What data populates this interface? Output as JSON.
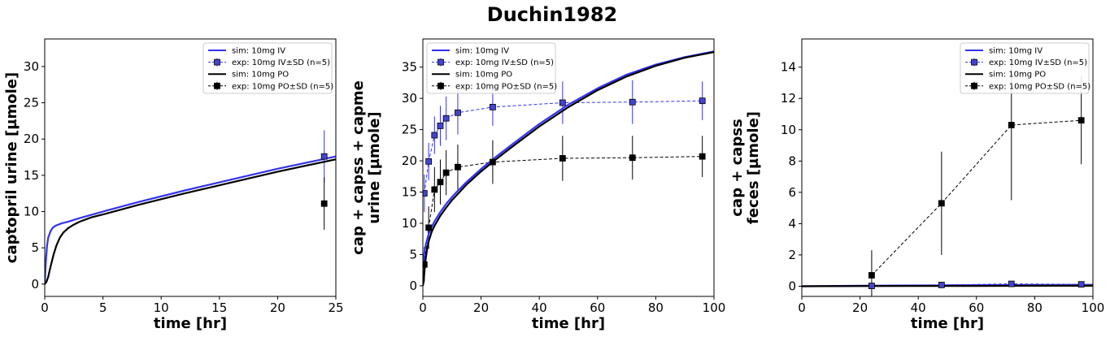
{
  "figure": {
    "title": "Duchin1982"
  },
  "styles": {
    "iv_color": "#3333ee",
    "iv_marker_fill": "#4444cc",
    "po_color": "#000000"
  },
  "chart_data": [
    {
      "type": "line",
      "xlabel": "time [hr]",
      "ylabel": [
        "captopril urine [µmole]"
      ],
      "xlim": [
        0,
        25
      ],
      "ylim": [
        -1.7,
        33.8
      ],
      "xticks": [
        0,
        5,
        10,
        15,
        20,
        25
      ],
      "yticks": [
        0,
        5,
        10,
        15,
        20,
        25,
        30
      ],
      "legend": {
        "position": "top-right",
        "entries": [
          "sim: 10mg IV",
          "exp: 10mg IV±SD (n=5)",
          "sim: 10mg PO",
          "exp: 10mg PO±SD (n=5)"
        ]
      },
      "series": [
        {
          "name": "sim: 10mg IV",
          "kind": "sim",
          "color_key": "iv",
          "x": [
            0,
            0.1,
            0.2,
            0.3,
            0.5,
            0.7,
            1,
            1.5,
            2,
            3,
            5,
            8,
            12,
            16,
            20,
            25
          ],
          "y": [
            0,
            3.2,
            5.3,
            6.4,
            7.3,
            7.8,
            8.1,
            8.4,
            8.6,
            9.1,
            10.0,
            11.3,
            12.9,
            14.4,
            15.9,
            17.6
          ]
        },
        {
          "name": "sim: 10mg PO",
          "kind": "sim",
          "color_key": "po",
          "x": [
            0,
            0.15,
            0.3,
            0.5,
            0.75,
            1,
            1.3,
            1.6,
            2,
            2.5,
            3,
            4,
            5,
            8,
            12,
            16,
            20,
            25
          ],
          "y": [
            0,
            0.3,
            1.0,
            2.4,
            4.0,
            5.3,
            6.4,
            7.1,
            7.7,
            8.2,
            8.6,
            9.2,
            9.6,
            10.9,
            12.5,
            14.0,
            15.5,
            17.2
          ]
        },
        {
          "name": "exp: 10mg IV±SD (n=5)",
          "kind": "exp",
          "color_key": "iv",
          "x": [
            24
          ],
          "y": [
            17.6
          ],
          "sd": [
            3.6
          ]
        },
        {
          "name": "exp: 10mg PO±SD (n=5)",
          "kind": "exp",
          "color_key": "po",
          "x": [
            24
          ],
          "y": [
            11.1
          ],
          "sd": [
            3.6
          ]
        }
      ]
    },
    {
      "type": "line",
      "xlabel": "time [hr]",
      "ylabel": [
        "cap + capss + capme",
        "urine [µmole]"
      ],
      "xlim": [
        0,
        100
      ],
      "ylim": [
        -1.7,
        39.5
      ],
      "xticks": [
        0,
        20,
        40,
        60,
        80,
        100
      ],
      "yticks": [
        0,
        5,
        10,
        15,
        20,
        25,
        30,
        35
      ],
      "legend": {
        "position": "top-left",
        "entries": [
          "sim: 10mg IV",
          "exp: 10mg IV±SD (n=5)",
          "sim: 10mg PO",
          "exp: 10mg PO±SD (n=5)"
        ]
      },
      "series": [
        {
          "name": "sim: 10mg IV",
          "kind": "sim",
          "color_key": "iv",
          "x": [
            0,
            0.2,
            0.5,
            1,
            2,
            3,
            4,
            6,
            8,
            10,
            12,
            15,
            20,
            25,
            30,
            40,
            50,
            60,
            70,
            80,
            90,
            100
          ],
          "y": [
            0,
            3.0,
            5.2,
            6.6,
            8.3,
            9.4,
            10.3,
            11.8,
            13.1,
            14.2,
            15.2,
            16.6,
            18.7,
            20.6,
            22.4,
            25.9,
            29.0,
            31.6,
            33.8,
            35.4,
            36.6,
            37.5
          ]
        },
        {
          "name": "sim: 10mg PO",
          "kind": "sim",
          "color_key": "po",
          "x": [
            0,
            0.3,
            0.6,
            1,
            1.5,
            2,
            3,
            4,
            6,
            8,
            10,
            12,
            15,
            20,
            25,
            30,
            40,
            50,
            60,
            70,
            80,
            90,
            100
          ],
          "y": [
            0,
            0.8,
            2.6,
            4.4,
            6.0,
            7.1,
            8.6,
            9.6,
            11.2,
            12.5,
            13.7,
            14.7,
            16.2,
            18.3,
            20.2,
            22.0,
            25.5,
            28.6,
            31.3,
            33.5,
            35.2,
            36.5,
            37.4
          ]
        },
        {
          "name": "exp: 10mg IV±SD (n=5)",
          "kind": "exp",
          "color_key": "iv",
          "x": [
            0.5,
            2,
            4,
            6,
            8,
            12,
            24,
            48,
            72,
            96
          ],
          "y": [
            14.8,
            19.9,
            24.1,
            25.6,
            26.8,
            27.7,
            28.6,
            29.3,
            29.4,
            29.6
          ],
          "sd": [
            3.0,
            3.0,
            3.0,
            3.2,
            3.5,
            3.5,
            3.0,
            3.4,
            3.5,
            3.1
          ]
        },
        {
          "name": "exp: 10mg PO±SD (n=5)",
          "kind": "exp",
          "color_key": "po",
          "x": [
            0.5,
            2,
            4,
            6,
            8,
            12,
            24,
            48,
            72,
            96
          ],
          "y": [
            3.4,
            9.3,
            15.4,
            16.6,
            18.1,
            19.0,
            19.8,
            20.4,
            20.5,
            20.7
          ],
          "sd": [
            2.8,
            3.4,
            3.6,
            3.6,
            3.6,
            3.6,
            3.5,
            3.6,
            3.5,
            3.3
          ]
        }
      ]
    },
    {
      "type": "line",
      "xlabel": "time [hr]",
      "ylabel": [
        "cap + capss",
        "feces [µmole]"
      ],
      "xlim": [
        0,
        100
      ],
      "ylim": [
        -0.65,
        15.8
      ],
      "xticks": [
        0,
        20,
        40,
        60,
        80,
        100
      ],
      "yticks": [
        0,
        2,
        4,
        6,
        8,
        10,
        12,
        14
      ],
      "legend": {
        "position": "top-right",
        "entries": [
          "sim: 10mg IV",
          "exp: 10mg IV±SD (n=5)",
          "sim: 10mg PO",
          "exp: 10mg PO±SD (n=5)"
        ]
      },
      "series": [
        {
          "name": "sim: 10mg IV",
          "kind": "sim",
          "color_key": "iv",
          "x": [
            0,
            20,
            40,
            60,
            80,
            100
          ],
          "y": [
            0,
            0.03,
            0.05,
            0.07,
            0.08,
            0.09
          ]
        },
        {
          "name": "sim: 10mg PO",
          "kind": "sim",
          "color_key": "po",
          "x": [
            0,
            20,
            40,
            60,
            80,
            100
          ],
          "y": [
            0,
            0.01,
            0.02,
            0.02,
            0.03,
            0.03
          ]
        },
        {
          "name": "exp: 10mg IV±SD (n=5)",
          "kind": "exp",
          "color_key": "iv",
          "x": [
            24,
            48,
            72,
            96
          ],
          "y": [
            0.02,
            0.08,
            0.15,
            0.12
          ],
          "sd": [
            0.05,
            0.05,
            0.05,
            0.05
          ]
        },
        {
          "name": "exp: 10mg PO±SD (n=5)",
          "kind": "exp",
          "color_key": "po",
          "x": [
            24,
            48,
            72,
            96
          ],
          "y": [
            0.7,
            5.3,
            10.3,
            10.6
          ],
          "sd": [
            1.6,
            3.3,
            4.8,
            2.8
          ]
        }
      ]
    }
  ]
}
